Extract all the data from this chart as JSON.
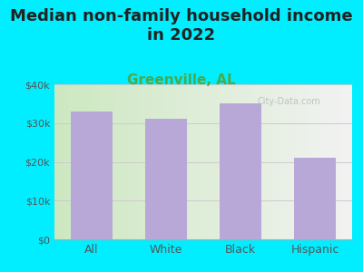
{
  "title": "Median non-family household income\nin 2022",
  "subtitle": "Greenville, AL",
  "categories": [
    "All",
    "White",
    "Black",
    "Hispanic"
  ],
  "values": [
    33000,
    31200,
    35200,
    21000
  ],
  "bar_color": "#b8a8d8",
  "background_color": "#00eeff",
  "plot_bg_left": "#cce8c0",
  "plot_bg_right": "#f2f2f2",
  "title_fontsize": 13,
  "subtitle_fontsize": 11,
  "subtitle_color": "#4aaa4a",
  "tick_label_color": "#555555",
  "ylim": [
    0,
    40000
  ],
  "yticks": [
    0,
    10000,
    20000,
    30000,
    40000
  ],
  "ytick_labels": [
    "$0",
    "$10k",
    "$20k",
    "$30k",
    "$40k"
  ],
  "watermark": "City-Data.com"
}
